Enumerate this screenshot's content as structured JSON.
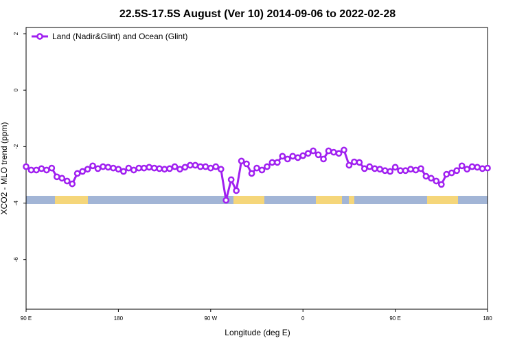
{
  "chart_data": {
    "type": "line",
    "title": "22.5S-17.5S August (Ver 10)   2014-09-06 to 2022-02-28",
    "x_label": "Longitude (deg E)",
    "y_label": "XCO2 - MLO trend (ppm)",
    "x": [
      90,
      95,
      100,
      105,
      110,
      115,
      120,
      125,
      130,
      135,
      140,
      145,
      150,
      155,
      160,
      165,
      170,
      175,
      180,
      185,
      190,
      195,
      200,
      205,
      210,
      215,
      220,
      225,
      230,
      235,
      240,
      245,
      250,
      255,
      260,
      265,
      270,
      275,
      280,
      285,
      290,
      295,
      300,
      305,
      310,
      315,
      320,
      325,
      330,
      335,
      340,
      345,
      350,
      355,
      360,
      365,
      370,
      375,
      380,
      385,
      390,
      395,
      400,
      405,
      410,
      415,
      420,
      425,
      430,
      435,
      440,
      445,
      450,
      455,
      460,
      465,
      470,
      475,
      480,
      485,
      490,
      495,
      500,
      505,
      510,
      515,
      520,
      525,
      530,
      535,
      540
    ],
    "series": [
      {
        "name": "Land (Nadir&Glint) and Ocean (Glint)",
        "color": "#a020f0",
        "values": [
          -2.71,
          -2.83,
          -2.83,
          -2.78,
          -2.83,
          -2.76,
          -3.07,
          -3.12,
          -3.22,
          -3.32,
          -2.95,
          -2.88,
          -2.8,
          -2.68,
          -2.78,
          -2.71,
          -2.73,
          -2.76,
          -2.8,
          -2.88,
          -2.76,
          -2.83,
          -2.76,
          -2.76,
          -2.73,
          -2.76,
          -2.78,
          -2.8,
          -2.78,
          -2.71,
          -2.8,
          -2.73,
          -2.66,
          -2.66,
          -2.71,
          -2.71,
          -2.76,
          -2.71,
          -2.8,
          -3.9,
          -3.17,
          -3.56,
          -2.51,
          -2.61,
          -2.95,
          -2.76,
          -2.83,
          -2.71,
          -2.56,
          -2.56,
          -2.34,
          -2.44,
          -2.34,
          -2.39,
          -2.32,
          -2.24,
          -2.15,
          -2.29,
          -2.44,
          -2.15,
          -2.2,
          -2.24,
          -2.12,
          -2.66,
          -2.54,
          -2.56,
          -2.78,
          -2.71,
          -2.78,
          -2.8,
          -2.85,
          -2.88,
          -2.73,
          -2.85,
          -2.85,
          -2.8,
          -2.83,
          -2.78,
          -3.05,
          -3.12,
          -3.22,
          -3.34,
          -2.98,
          -2.93,
          -2.85,
          -2.68,
          -2.8,
          -2.71,
          -2.73,
          -2.78,
          -2.76
        ]
      }
    ],
    "xlim": [
      90,
      540
    ],
    "xticks": [
      {
        "value": 90,
        "label": "90 E"
      },
      180,
      {
        "value": 270,
        "label": "90 W"
      },
      {
        "value": 360,
        "label": "0"
      },
      {
        "value": 450,
        "label": "90 E"
      },
      {
        "value": 540,
        "label": "180"
      }
    ],
    "ylim": [
      -7.76,
      2.22
    ],
    "yticks": [
      -6,
      -4,
      -2,
      0,
      2
    ],
    "legend": "top-left"
  }
}
